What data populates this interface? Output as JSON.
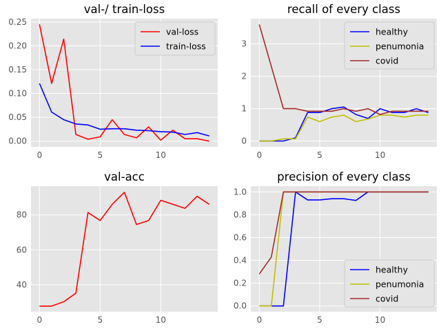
{
  "colors": {
    "axes_bg": "#E5E5E5",
    "grid": "#FFFFFF",
    "tick_text": "#555555",
    "red": "#FF0000",
    "blue": "#0000FF",
    "olive": "#BFBF00",
    "brown": "#A52A2A"
  },
  "chart_data": [
    {
      "id": "loss",
      "type": "line",
      "title": "val-/ train-loss",
      "xlabel": "",
      "ylabel": "",
      "xlim": [
        -0.7,
        14.7
      ],
      "ylim": [
        -0.012,
        0.257
      ],
      "xticks": [
        0,
        5,
        10
      ],
      "xtick_labels": [
        "0",
        "5",
        "10"
      ],
      "yticks": [
        0,
        0.05,
        0.1,
        0.15,
        0.2,
        0.25
      ],
      "ytick_labels": [
        "0.00",
        "0.05",
        "0.10",
        "0.15",
        "0.20",
        "0.25"
      ],
      "grid": true,
      "legend": "upper-right",
      "x": [
        0,
        1,
        2,
        3,
        4,
        5,
        6,
        7,
        8,
        9,
        10,
        11,
        12,
        13,
        14
      ],
      "series": [
        {
          "name": "val-loss",
          "color": "#FF0000",
          "values": [
            0.245,
            0.121,
            0.214,
            0.014,
            0.004,
            0.009,
            0.045,
            0.014,
            0.007,
            0.03,
            0.002,
            0.023,
            0.005,
            0.005,
            0.0
          ]
        },
        {
          "name": "train-loss",
          "color": "#0000FF",
          "values": [
            0.121,
            0.061,
            0.045,
            0.036,
            0.034,
            0.025,
            0.026,
            0.026,
            0.023,
            0.022,
            0.02,
            0.019,
            0.014,
            0.018,
            0.011
          ]
        }
      ]
    },
    {
      "id": "recall",
      "type": "line",
      "title": "recall of every class",
      "xlabel": "",
      "ylabel": "",
      "xlim": [
        -0.7,
        14.7
      ],
      "ylim": [
        -0.18,
        3.78
      ],
      "xticks": [
        0,
        5,
        10
      ],
      "xtick_labels": [
        "0",
        "5",
        "10"
      ],
      "yticks": [
        0,
        1,
        2,
        3
      ],
      "ytick_labels": [
        "0",
        "1",
        "2",
        "3"
      ],
      "grid": true,
      "legend": "upper-right",
      "x": [
        0,
        1,
        2,
        3,
        4,
        5,
        6,
        7,
        8,
        9,
        10,
        11,
        12,
        13,
        14
      ],
      "series": [
        {
          "name": "healthy",
          "color": "#0000FF",
          "values": [
            0.0,
            0.0,
            0.0,
            0.1,
            0.88,
            0.88,
            1.0,
            1.05,
            0.82,
            0.7,
            1.0,
            0.88,
            0.88,
            1.0,
            0.88
          ]
        },
        {
          "name": "penumonia",
          "color": "#BFBF00",
          "values": [
            0.0,
            0.0,
            0.07,
            0.07,
            0.74,
            0.6,
            0.74,
            0.8,
            0.6,
            0.68,
            0.8,
            0.8,
            0.74,
            0.8,
            0.8
          ]
        },
        {
          "name": "covid",
          "color": "#A52A2A",
          "values": [
            3.6,
            2.3,
            1.0,
            1.0,
            0.92,
            0.92,
            0.92,
            1.0,
            0.92,
            1.0,
            0.82,
            0.92,
            0.92,
            0.92,
            0.92
          ]
        }
      ]
    },
    {
      "id": "acc",
      "type": "line",
      "title": "val-acc",
      "xlabel": "",
      "ylabel": "",
      "xlim": [
        -0.7,
        14.7
      ],
      "ylim": [
        24.5,
        96.5
      ],
      "xticks": [
        0,
        5,
        10
      ],
      "xtick_labels": [
        "0",
        "5",
        "10"
      ],
      "yticks": [
        40,
        60,
        80
      ],
      "ytick_labels": [
        "40",
        "60",
        "80"
      ],
      "grid": true,
      "x": [
        0,
        1,
        2,
        3,
        4,
        5,
        6,
        7,
        8,
        9,
        10,
        11,
        12,
        13,
        14
      ],
      "series": [
        {
          "color": "#FF0000",
          "values": [
            27.7,
            27.7,
            30.2,
            35.1,
            81.4,
            76.8,
            86.1,
            93.0,
            74.5,
            76.8,
            88.4,
            86.1,
            83.8,
            90.7,
            86.1
          ]
        }
      ]
    },
    {
      "id": "precision",
      "type": "line",
      "title": "precision of every class",
      "xlabel": "",
      "ylabel": "",
      "xlim": [
        -0.7,
        14.7
      ],
      "ylim": [
        -0.05,
        1.05
      ],
      "xticks": [
        0,
        5,
        10
      ],
      "xtick_labels": [
        "0",
        "5",
        "10"
      ],
      "yticks": [
        0,
        0.2,
        0.4,
        0.6,
        0.8,
        1.0
      ],
      "ytick_labels": [
        "0.0",
        "0.2",
        "0.4",
        "0.6",
        "0.8",
        "1.0"
      ],
      "grid": true,
      "legend": "lower-right",
      "x": [
        0,
        1,
        2,
        3,
        4,
        5,
        6,
        7,
        8,
        9,
        10,
        11,
        12,
        13,
        14
      ],
      "series": [
        {
          "name": "healthy",
          "color": "#0000FF",
          "values": [
            0.0,
            0.0,
            0.0,
            1.0,
            0.93,
            0.93,
            0.94,
            0.94,
            0.925,
            1.0,
            1.0,
            1.0,
            1.0,
            1.0,
            1.0
          ]
        },
        {
          "name": "penumonia",
          "color": "#BFBF00",
          "values": [
            0.0,
            0.0,
            1.0,
            1.0,
            1.0,
            1.0,
            1.0,
            1.0,
            1.0,
            1.0,
            1.0,
            1.0,
            1.0,
            1.0,
            1.0
          ]
        },
        {
          "name": "covid",
          "color": "#A52A2A",
          "values": [
            0.28,
            0.43,
            1.0,
            1.0,
            1.0,
            1.0,
            1.0,
            1.0,
            1.0,
            1.0,
            1.0,
            1.0,
            1.0,
            1.0,
            1.0
          ]
        }
      ]
    }
  ]
}
